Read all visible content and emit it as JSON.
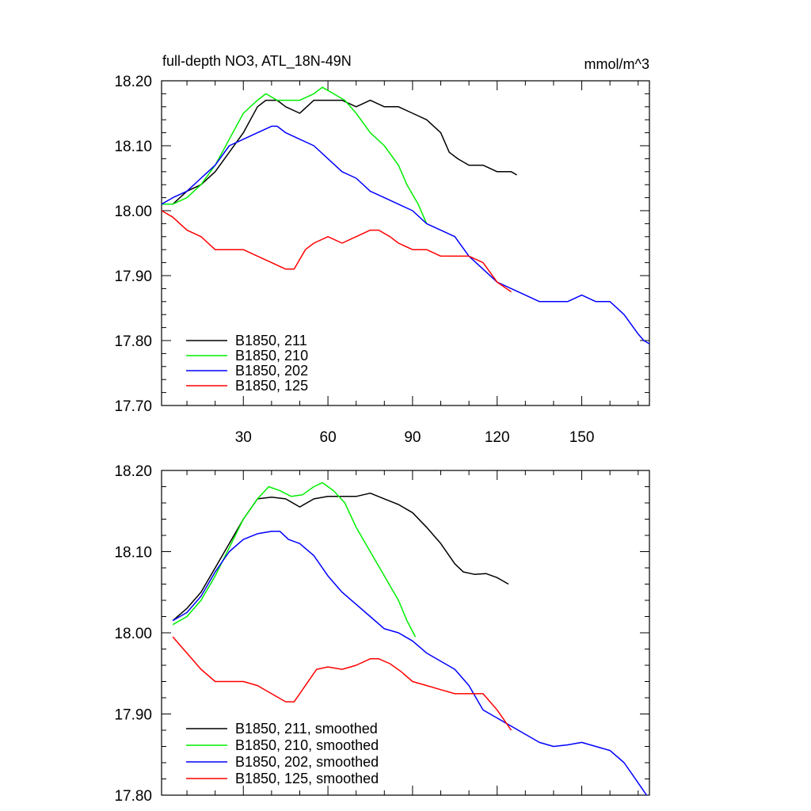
{
  "chart_data": [
    {
      "type": "line",
      "title": "full-depth NO3, ATL_18N-49N",
      "units": "mmol/m^3",
      "xlim": [
        1,
        174
      ],
      "ylim": [
        17.7,
        18.2
      ],
      "xticks": [
        30,
        60,
        90,
        120,
        150
      ],
      "xtick_labels": [
        "30",
        "60",
        "90",
        "120",
        "150"
      ],
      "yticks": [
        17.7,
        17.8,
        17.9,
        18.0,
        18.1,
        18.2
      ],
      "ytick_labels": [
        "17.70",
        "17.80",
        "17.90",
        "18.00",
        "18.10",
        "18.20"
      ],
      "legend_position": "bottom-left",
      "series": [
        {
          "name": "B1850, 211",
          "color": "#000000",
          "points": [
            [
              1,
              18.01
            ],
            [
              5,
              18.01
            ],
            [
              10,
              18.03
            ],
            [
              15,
              18.04
            ],
            [
              20,
              18.06
            ],
            [
              25,
              18.09
            ],
            [
              30,
              18.12
            ],
            [
              35,
              18.16
            ],
            [
              38,
              18.17
            ],
            [
              42,
              18.17
            ],
            [
              45,
              18.16
            ],
            [
              50,
              18.15
            ],
            [
              55,
              18.17
            ],
            [
              60,
              18.17
            ],
            [
              65,
              18.17
            ],
            [
              70,
              18.16
            ],
            [
              75,
              18.17
            ],
            [
              80,
              18.16
            ],
            [
              85,
              18.16
            ],
            [
              90,
              18.15
            ],
            [
              95,
              18.14
            ],
            [
              100,
              18.12
            ],
            [
              103,
              18.09
            ],
            [
              106,
              18.08
            ],
            [
              110,
              18.07
            ],
            [
              115,
              18.07
            ],
            [
              120,
              18.06
            ],
            [
              125,
              18.06
            ],
            [
              127,
              18.055
            ]
          ]
        },
        {
          "name": "B1850, 210",
          "color": "#00ee00",
          "points": [
            [
              1,
              18.01
            ],
            [
              5,
              18.01
            ],
            [
              10,
              18.02
            ],
            [
              15,
              18.04
            ],
            [
              20,
              18.07
            ],
            [
              25,
              18.11
            ],
            [
              30,
              18.15
            ],
            [
              35,
              18.17
            ],
            [
              38,
              18.18
            ],
            [
              42,
              18.17
            ],
            [
              45,
              18.17
            ],
            [
              50,
              18.17
            ],
            [
              55,
              18.18
            ],
            [
              58,
              18.19
            ],
            [
              62,
              18.18
            ],
            [
              66,
              18.17
            ],
            [
              70,
              18.15
            ],
            [
              75,
              18.12
            ],
            [
              80,
              18.1
            ],
            [
              85,
              18.07
            ],
            [
              88,
              18.04
            ],
            [
              92,
              18.01
            ],
            [
              95,
              17.98
            ]
          ]
        },
        {
          "name": "B1850, 202",
          "color": "#0000ff",
          "points": [
            [
              1,
              18.01
            ],
            [
              5,
              18.02
            ],
            [
              10,
              18.03
            ],
            [
              15,
              18.05
            ],
            [
              20,
              18.07
            ],
            [
              25,
              18.1
            ],
            [
              30,
              18.11
            ],
            [
              35,
              18.12
            ],
            [
              40,
              18.13
            ],
            [
              42,
              18.13
            ],
            [
              45,
              18.12
            ],
            [
              50,
              18.11
            ],
            [
              55,
              18.1
            ],
            [
              60,
              18.08
            ],
            [
              65,
              18.06
            ],
            [
              70,
              18.05
            ],
            [
              75,
              18.03
            ],
            [
              80,
              18.02
            ],
            [
              85,
              18.01
            ],
            [
              90,
              18.0
            ],
            [
              95,
              17.98
            ],
            [
              100,
              17.97
            ],
            [
              105,
              17.96
            ],
            [
              110,
              17.93
            ],
            [
              115,
              17.91
            ],
            [
              120,
              17.89
            ],
            [
              125,
              17.88
            ],
            [
              130,
              17.87
            ],
            [
              135,
              17.86
            ],
            [
              140,
              17.86
            ],
            [
              145,
              17.86
            ],
            [
              150,
              17.87
            ],
            [
              155,
              17.86
            ],
            [
              160,
              17.86
            ],
            [
              165,
              17.84
            ],
            [
              170,
              17.81
            ],
            [
              172,
              17.8
            ],
            [
              174,
              17.795
            ]
          ]
        },
        {
          "name": "B1850, 125",
          "color": "#ff0000",
          "points": [
            [
              1,
              18.0
            ],
            [
              5,
              17.99
            ],
            [
              10,
              17.97
            ],
            [
              15,
              17.96
            ],
            [
              20,
              17.94
            ],
            [
              25,
              17.94
            ],
            [
              30,
              17.94
            ],
            [
              35,
              17.93
            ],
            [
              40,
              17.92
            ],
            [
              45,
              17.91
            ],
            [
              48,
              17.91
            ],
            [
              52,
              17.94
            ],
            [
              55,
              17.95
            ],
            [
              60,
              17.96
            ],
            [
              65,
              17.95
            ],
            [
              70,
              17.96
            ],
            [
              75,
              17.97
            ],
            [
              78,
              17.97
            ],
            [
              82,
              17.96
            ],
            [
              85,
              17.95
            ],
            [
              90,
              17.94
            ],
            [
              95,
              17.94
            ],
            [
              100,
              17.93
            ],
            [
              105,
              17.93
            ],
            [
              110,
              17.93
            ],
            [
              115,
              17.92
            ],
            [
              120,
              17.89
            ],
            [
              125,
              17.875
            ]
          ]
        }
      ]
    },
    {
      "type": "line",
      "xlim": [
        1,
        174
      ],
      "ylim": [
        17.8,
        18.2
      ],
      "xticks": [
        30,
        60,
        90,
        120,
        150
      ],
      "yticks": [
        17.8,
        17.9,
        18.0,
        18.1,
        18.2
      ],
      "ytick_labels": [
        "17.80",
        "17.90",
        "18.00",
        "18.10",
        "18.20"
      ],
      "legend_position": "bottom-left",
      "series": [
        {
          "name": "B1850, 211, smoothed",
          "color": "#000000",
          "points": [
            [
              5,
              18.015
            ],
            [
              10,
              18.03
            ],
            [
              15,
              18.05
            ],
            [
              20,
              18.08
            ],
            [
              25,
              18.11
            ],
            [
              30,
              18.14
            ],
            [
              35,
              18.165
            ],
            [
              40,
              18.167
            ],
            [
              45,
              18.165
            ],
            [
              50,
              18.155
            ],
            [
              55,
              18.165
            ],
            [
              60,
              18.168
            ],
            [
              65,
              18.168
            ],
            [
              70,
              18.168
            ],
            [
              75,
              18.172
            ],
            [
              80,
              18.165
            ],
            [
              85,
              18.158
            ],
            [
              90,
              18.148
            ],
            [
              95,
              18.13
            ],
            [
              100,
              18.11
            ],
            [
              105,
              18.085
            ],
            [
              108,
              18.075
            ],
            [
              112,
              18.072
            ],
            [
              116,
              18.073
            ],
            [
              120,
              18.068
            ],
            [
              124,
              18.06
            ]
          ]
        },
        {
          "name": "B1850, 210, smoothed",
          "color": "#00ee00",
          "points": [
            [
              5,
              18.01
            ],
            [
              10,
              18.02
            ],
            [
              15,
              18.04
            ],
            [
              20,
              18.07
            ],
            [
              25,
              18.105
            ],
            [
              30,
              18.14
            ],
            [
              35,
              18.165
            ],
            [
              39,
              18.18
            ],
            [
              43,
              18.175
            ],
            [
              47,
              18.168
            ],
            [
              51,
              18.17
            ],
            [
              55,
              18.18
            ],
            [
              58,
              18.185
            ],
            [
              62,
              18.175
            ],
            [
              66,
              18.16
            ],
            [
              70,
              18.13
            ],
            [
              75,
              18.1
            ],
            [
              80,
              18.07
            ],
            [
              85,
              18.04
            ],
            [
              88,
              18.015
            ],
            [
              91,
              17.995
            ]
          ]
        },
        {
          "name": "B1850, 202, smoothed",
          "color": "#0000ff",
          "points": [
            [
              5,
              18.015
            ],
            [
              10,
              18.025
            ],
            [
              15,
              18.045
            ],
            [
              20,
              18.075
            ],
            [
              25,
              18.1
            ],
            [
              30,
              18.115
            ],
            [
              35,
              18.122
            ],
            [
              40,
              18.125
            ],
            [
              43,
              18.125
            ],
            [
              46,
              18.115
            ],
            [
              50,
              18.11
            ],
            [
              55,
              18.095
            ],
            [
              60,
              18.07
            ],
            [
              65,
              18.05
            ],
            [
              70,
              18.035
            ],
            [
              75,
              18.02
            ],
            [
              80,
              18.005
            ],
            [
              85,
              18.0
            ],
            [
              90,
              17.99
            ],
            [
              95,
              17.975
            ],
            [
              100,
              17.965
            ],
            [
              105,
              17.955
            ],
            [
              110,
              17.935
            ],
            [
              115,
              17.905
            ],
            [
              120,
              17.895
            ],
            [
              125,
              17.885
            ],
            [
              130,
              17.875
            ],
            [
              135,
              17.865
            ],
            [
              140,
              17.86
            ],
            [
              145,
              17.862
            ],
            [
              150,
              17.865
            ],
            [
              155,
              17.86
            ],
            [
              160,
              17.855
            ],
            [
              165,
              17.84
            ],
            [
              170,
              17.815
            ],
            [
              172,
              17.805
            ],
            [
              173,
              17.8
            ]
          ]
        },
        {
          "name": "B1850, 125, smoothed",
          "color": "#ff0000",
          "points": [
            [
              5,
              17.995
            ],
            [
              10,
              17.975
            ],
            [
              15,
              17.955
            ],
            [
              20,
              17.94
            ],
            [
              25,
              17.94
            ],
            [
              30,
              17.94
            ],
            [
              35,
              17.935
            ],
            [
              40,
              17.925
            ],
            [
              45,
              17.915
            ],
            [
              48,
              17.915
            ],
            [
              52,
              17.935
            ],
            [
              56,
              17.955
            ],
            [
              60,
              17.958
            ],
            [
              65,
              17.955
            ],
            [
              70,
              17.96
            ],
            [
              75,
              17.968
            ],
            [
              78,
              17.968
            ],
            [
              82,
              17.962
            ],
            [
              86,
              17.952
            ],
            [
              90,
              17.94
            ],
            [
              95,
              17.935
            ],
            [
              100,
              17.93
            ],
            [
              105,
              17.925
            ],
            [
              110,
              17.925
            ],
            [
              115,
              17.925
            ],
            [
              120,
              17.905
            ],
            [
              125,
              17.88
            ]
          ]
        }
      ]
    }
  ]
}
